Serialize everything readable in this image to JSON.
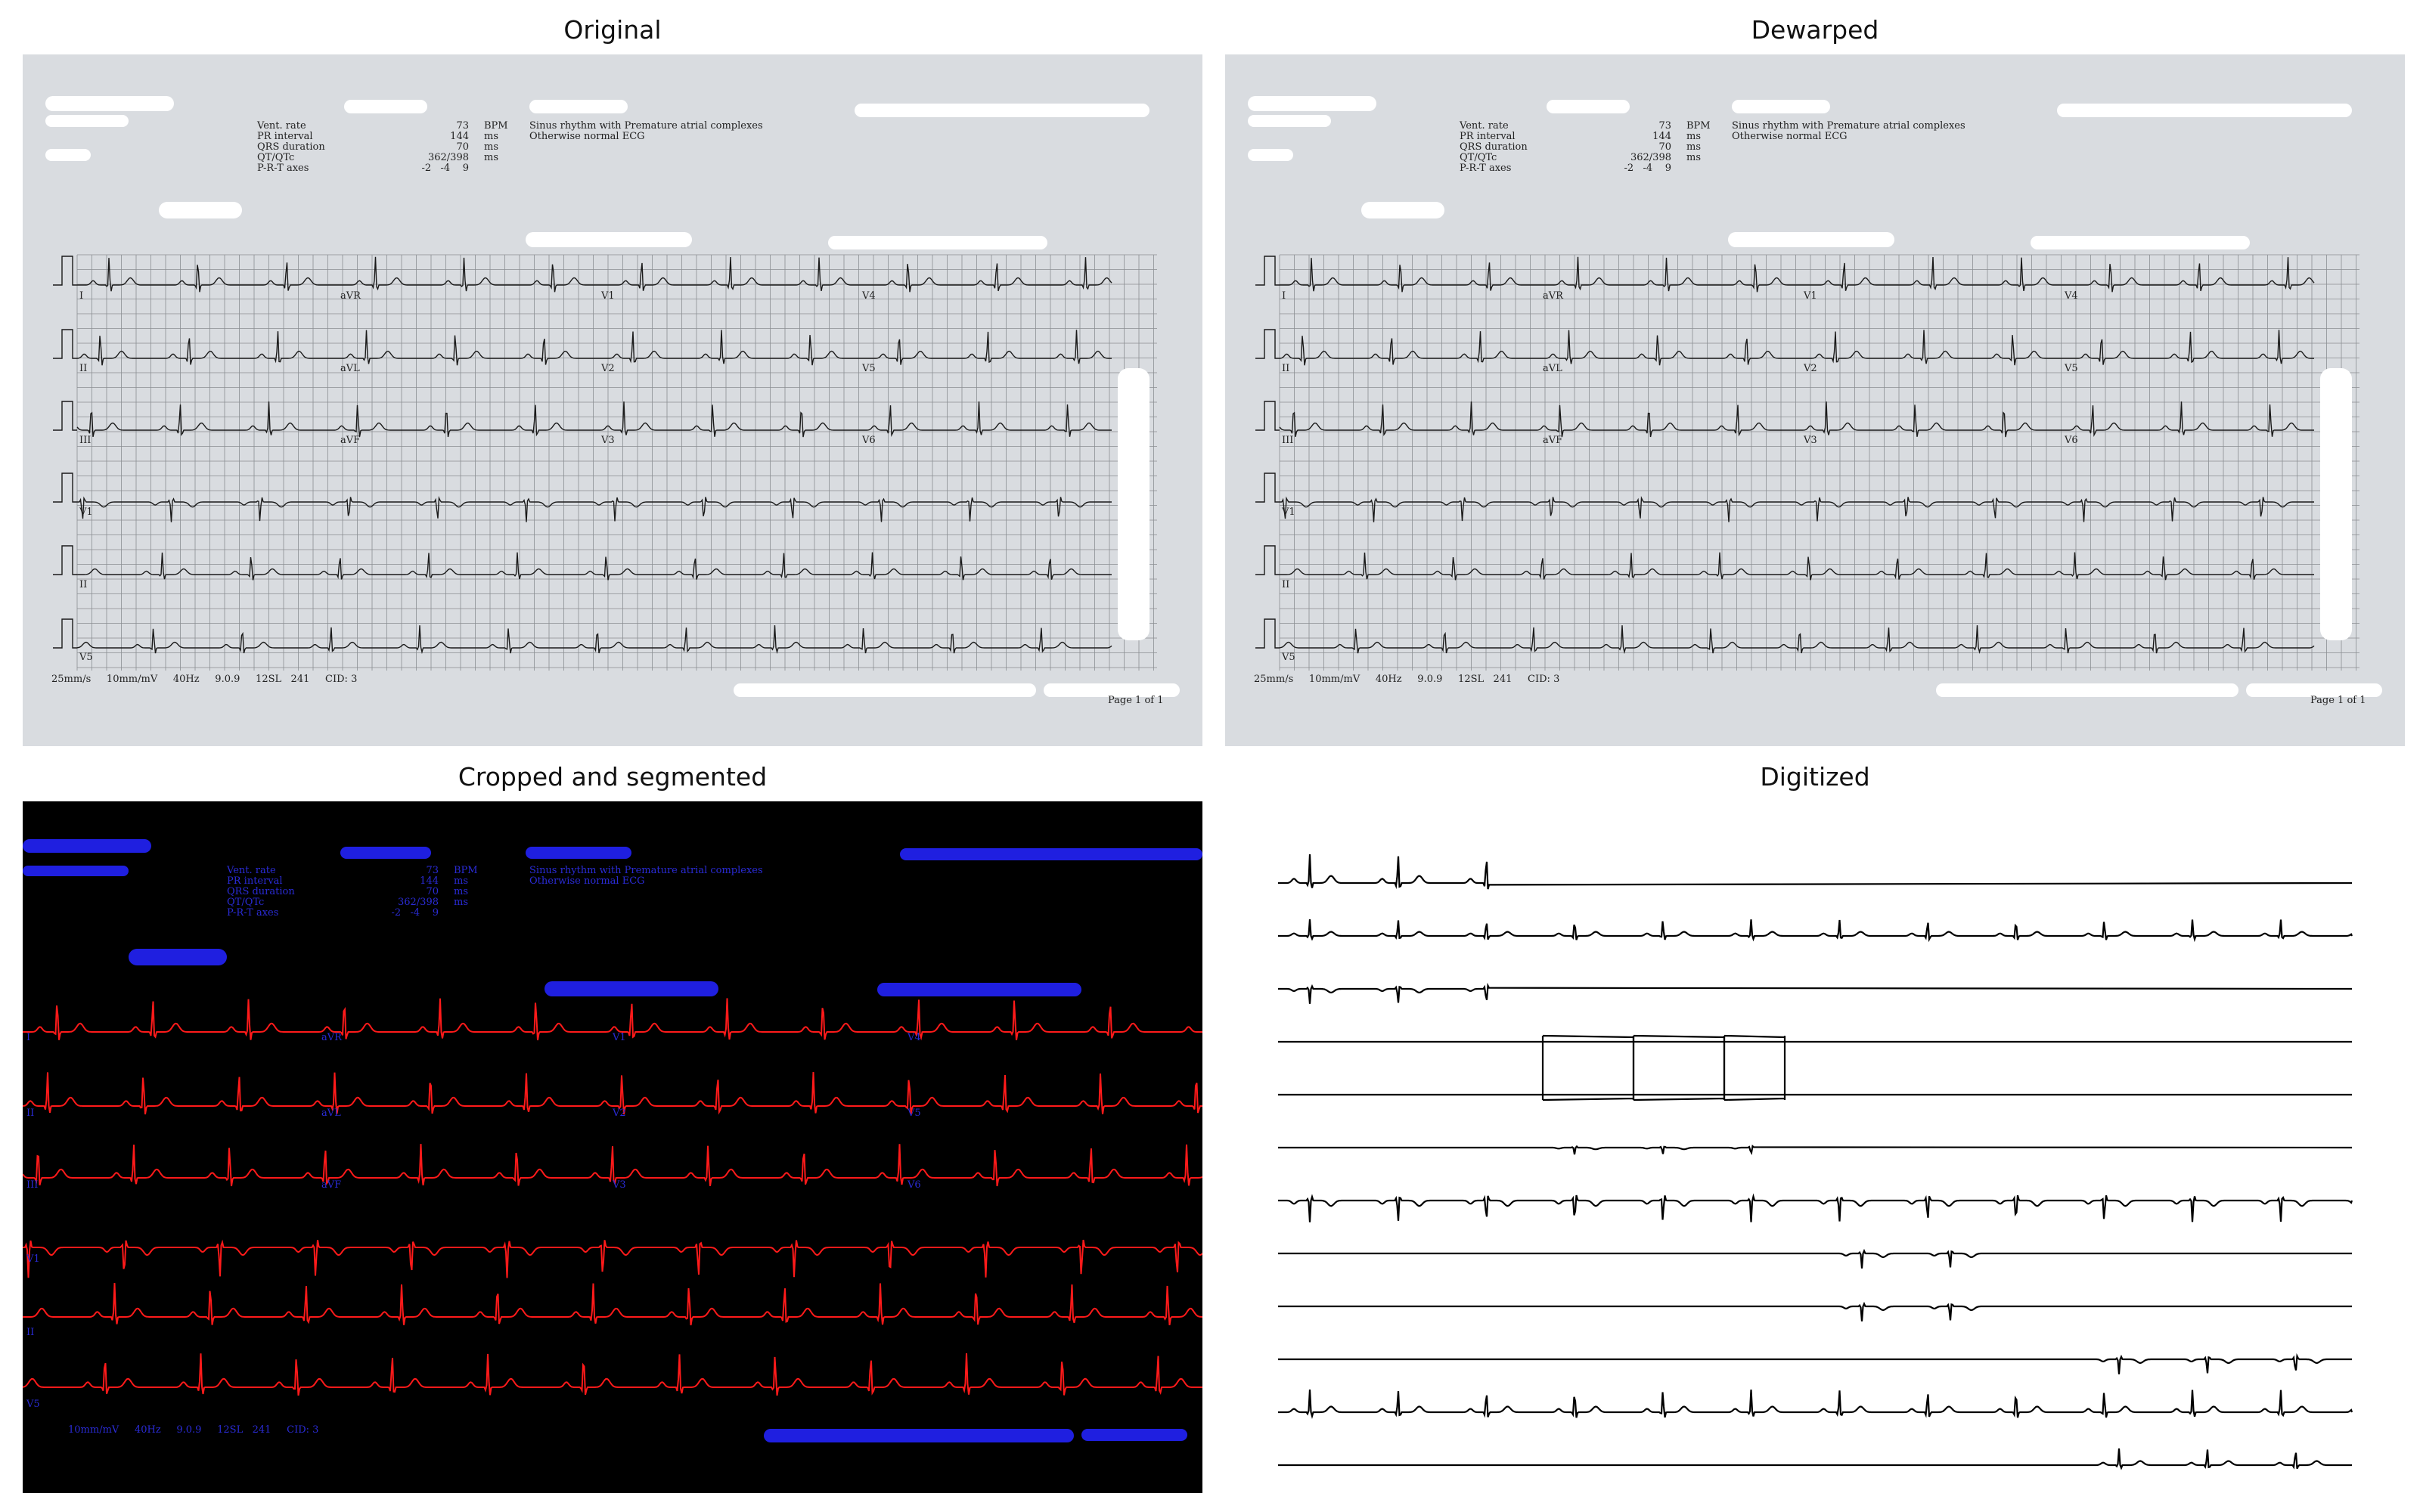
{
  "titles": {
    "original": "Original",
    "dewarped": "Dewarped",
    "segmented": "Cropped and segmented",
    "digitized": "Digitized"
  },
  "ecg": {
    "labels_left": [
      "Vent. rate",
      "PR interval",
      "QRS duration",
      "QT/QTc",
      "P-R-T axes"
    ],
    "values": [
      "73",
      "144",
      "70",
      "362/398",
      "-2   -4    9"
    ],
    "units": [
      "BPM",
      "ms",
      "ms",
      "ms",
      ""
    ],
    "interpretation": [
      "Sinus rhythm with Premature atrial complexes",
      "Otherwise normal ECG"
    ],
    "footer": [
      "25mm/s",
      "10mm/mV",
      "40Hz",
      "9.0.9",
      "12SL",
      "241",
      "CID: 3"
    ],
    "page": "Page 1 of 1",
    "leads": {
      "row1": [
        "I",
        "aVR",
        "V1",
        "V4"
      ],
      "row2": [
        "II",
        "aVL",
        "V2",
        "V5"
      ],
      "row3": [
        "III",
        "aVF",
        "V3",
        "V6"
      ],
      "rhythm": [
        "V1",
        "II",
        "V5"
      ]
    },
    "heart_rate_bpm": 73
  },
  "colors": {
    "paper": "#d9dce0",
    "grid": "#8a8e92",
    "trace": "#1a1a1a",
    "segment_trace": "#ff1a1a",
    "segment_text": "#2a2bd6",
    "digitized_trace": "#000000"
  }
}
